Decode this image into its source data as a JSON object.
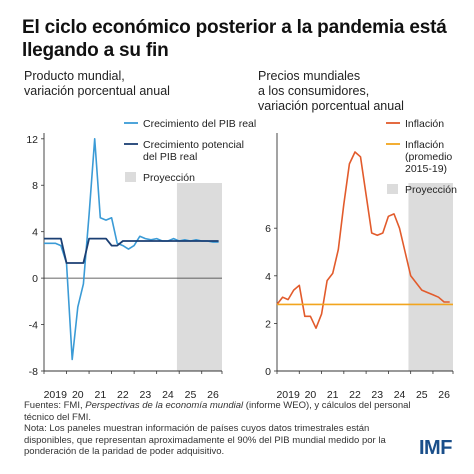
{
  "title": "El ciclo económico posterior a la pandemia está llegando a su fin",
  "footnote": {
    "sources_prefix": "Fuentes: FMI, ",
    "sources_italic": "Perspectivas de la economía mundial",
    "sources_suffix": " (informe WEO), y cálculos del personal técnico del FMI.",
    "note": "Nota: Los paneles muestran información de países cuyos datos trimestrales están disponibles, que representan aproximadamente el 90% del PIB mundial medido por la ponderación de la paridad de poder adquisitivo."
  },
  "logo": "IMF",
  "colors": {
    "gdp_growth": "#3b9bd6",
    "potential_growth": "#1b3f73",
    "inflation": "#e25b2c",
    "inflation_avg": "#f2a51e",
    "projection": "#dcdcdc",
    "axis": "#333333"
  },
  "chart_data": [
    {
      "type": "line",
      "subtitle": "Producto mundial,\nvariación porcentual anual",
      "xlabel": "",
      "ylabel": "",
      "x_ticks": [
        "2019",
        "20",
        "21",
        "22",
        "23",
        "24",
        "25",
        "26"
      ],
      "y_ticks": [
        -8,
        -4,
        0,
        4,
        8,
        12
      ],
      "xlim": [
        2019.0,
        2026.9
      ],
      "ylim": [
        -8,
        12.5
      ],
      "projection_range": [
        2024.9,
        2026.9
      ],
      "legend": {
        "position": "top-right",
        "entries": [
          "Crecimiento del PIB real",
          "Crecimiento potencial\ndel PIB real",
          "Proyección"
        ]
      },
      "series": [
        {
          "name": "Crecimiento del PIB real",
          "x": [
            2019.0,
            2019.25,
            2019.5,
            2019.75,
            2020.0,
            2020.25,
            2020.5,
            2020.75,
            2021.0,
            2021.25,
            2021.5,
            2021.75,
            2022.0,
            2022.25,
            2022.5,
            2022.75,
            2023.0,
            2023.25,
            2023.5,
            2023.75,
            2024.0,
            2024.25,
            2024.5,
            2024.75,
            2025.0,
            2025.25,
            2025.5,
            2025.75,
            2026.0,
            2026.25,
            2026.5,
            2026.75
          ],
          "y": [
            3.0,
            3.0,
            3.0,
            2.8,
            1.3,
            -7.0,
            -2.5,
            -0.5,
            5.5,
            12.0,
            5.2,
            5.0,
            5.2,
            3.0,
            2.8,
            2.5,
            2.8,
            3.6,
            3.4,
            3.3,
            3.4,
            3.2,
            3.2,
            3.4,
            3.2,
            3.3,
            3.2,
            3.3,
            3.2,
            3.2,
            3.1,
            3.1
          ]
        },
        {
          "name": "Crecimiento potencial del PIB real",
          "x": [
            2019.0,
            2019.25,
            2019.5,
            2019.75,
            2020.0,
            2020.25,
            2020.5,
            2020.75,
            2021.0,
            2021.25,
            2021.5,
            2021.75,
            2022.0,
            2022.25,
            2022.5,
            2022.75,
            2023.0,
            2023.25,
            2023.5,
            2023.75,
            2024.0,
            2024.25,
            2024.5,
            2024.75,
            2025.0,
            2025.25,
            2025.5,
            2025.75,
            2026.0,
            2026.25,
            2026.5,
            2026.75
          ],
          "y": [
            3.4,
            3.4,
            3.4,
            3.4,
            1.3,
            1.3,
            1.3,
            1.3,
            3.4,
            3.4,
            3.4,
            3.4,
            2.8,
            2.8,
            3.2,
            3.2,
            3.2,
            3.2,
            3.2,
            3.2,
            3.2,
            3.2,
            3.2,
            3.2,
            3.2,
            3.2,
            3.2,
            3.2,
            3.2,
            3.2,
            3.2,
            3.2
          ]
        }
      ]
    },
    {
      "type": "line",
      "subtitle": "Precios mundiales\na los consumidores,\nvariación porcentual anual",
      "xlabel": "",
      "ylabel": "",
      "x_ticks": [
        "2019",
        "20",
        "21",
        "22",
        "23",
        "24",
        "25",
        "26"
      ],
      "y_ticks": [
        0,
        2,
        4,
        6
      ],
      "xlim": [
        2019.0,
        2026.9
      ],
      "ylim": [
        0,
        10
      ],
      "projection_range": [
        2024.9,
        2026.9
      ],
      "legend": {
        "position": "top-right",
        "entries": [
          "Inflación",
          "Inflación\n(promedio\n2015-19)",
          "Proyección"
        ]
      },
      "series": [
        {
          "name": "Inflación",
          "x": [
            2019.0,
            2019.25,
            2019.5,
            2019.75,
            2020.0,
            2020.25,
            2020.5,
            2020.75,
            2021.0,
            2021.25,
            2021.5,
            2021.75,
            2022.0,
            2022.25,
            2022.5,
            2022.75,
            2023.0,
            2023.25,
            2023.5,
            2023.75,
            2024.0,
            2024.25,
            2024.5,
            2024.75,
            2025.0,
            2025.25,
            2025.5,
            2025.75,
            2026.0,
            2026.25,
            2026.5,
            2026.75
          ],
          "y": [
            2.8,
            3.1,
            3.0,
            3.4,
            3.6,
            2.3,
            2.3,
            1.8,
            2.4,
            3.8,
            4.1,
            5.1,
            7.0,
            8.7,
            9.2,
            9.0,
            7.4,
            5.8,
            5.7,
            5.8,
            6.5,
            6.6,
            6.0,
            5.0,
            4.0,
            3.7,
            3.4,
            3.3,
            3.2,
            3.1,
            2.9,
            2.9
          ]
        },
        {
          "name": "Inflación (promedio 2015-19)",
          "x": [
            2019.0,
            2026.9
          ],
          "y": [
            2.8,
            2.8
          ]
        }
      ]
    }
  ]
}
